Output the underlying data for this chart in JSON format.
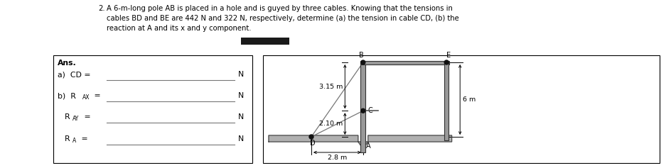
{
  "title_num": "2.",
  "title_text": "A 6-m-long pole AB is placed in a hole and is guyed by three cables. Knowing that the tensions in\ncables BD and BE are 442 N and 322 N, respectively, determine (a) the tension in cable CD, (b) the\nreaction at A and its x and y component.",
  "ans_label": "Ans.",
  "part_a_label": "a)  CD =",
  "part_a_unit": "N",
  "part_b1_label": "b)  RAx =",
  "part_b1_unit": "N",
  "part_b2_label": "RAy =",
  "part_b2_unit": "N",
  "part_b3_label": "RA =",
  "part_b3_unit": "N",
  "dim_315": "3.15 m",
  "dim_210": "2.10 m",
  "dim_28": "2.8 m",
  "dim_6m": "6 m",
  "label_B": "B",
  "label_E": "E",
  "label_C": "C",
  "label_D": "D",
  "label_A": "A",
  "bg_color": "#ffffff",
  "redacted_color": "#1a1a1a",
  "font_size_title": 7.2,
  "font_size_ans": 7.8,
  "font_size_dim": 6.8
}
